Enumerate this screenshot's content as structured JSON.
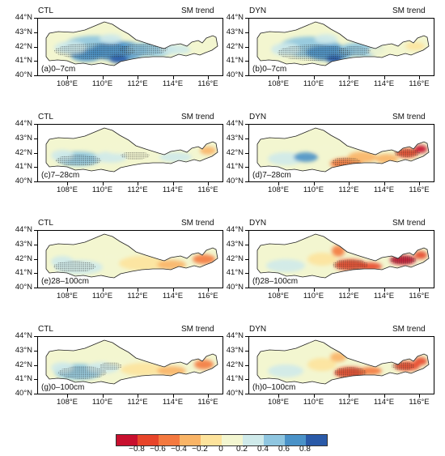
{
  "left_header": "CTL",
  "right_header": "DYN",
  "variable_label": "SM trend",
  "y_ticks": [
    "44°N",
    "43°N",
    "42°N",
    "41°N",
    "40°N"
  ],
  "x_ticks": [
    "108°E",
    "110°E",
    "112°E",
    "114°E",
    "116°E"
  ],
  "panels": [
    {
      "label": "(a)0–7cm",
      "model": "CTL",
      "layer": "0–7cm"
    },
    {
      "label": "(b)0–7cm",
      "model": "DYN",
      "layer": "0–7cm"
    },
    {
      "label": "(c)7–28cm",
      "model": "CTL",
      "layer": "7–28cm"
    },
    {
      "label": "(d)7–28cm",
      "model": "DYN",
      "layer": "7–28cm"
    },
    {
      "label": "(e)28–100cm",
      "model": "CTL",
      "layer": "28–100cm"
    },
    {
      "label": "(f)28–100cm",
      "model": "DYN",
      "layer": "28–100cm"
    },
    {
      "label": "(g)0–100cm",
      "model": "CTL",
      "layer": "0–100cm"
    },
    {
      "label": "(h)0–100cm",
      "model": "DYN",
      "layer": "0–100cm"
    }
  ],
  "colorbar": {
    "ticks": [
      "−0.8",
      "−0.6",
      "−0.4",
      "−0.2",
      "0",
      "0.2",
      "0.4",
      "0.6",
      "0.8"
    ],
    "colors": [
      "#c8102e",
      "#e8452a",
      "#f4793f",
      "#f9b466",
      "#fde39c",
      "#f3f6d0",
      "#cfeaea",
      "#8fc6e0",
      "#4a92c8",
      "#2a5aa8"
    ]
  }
}
